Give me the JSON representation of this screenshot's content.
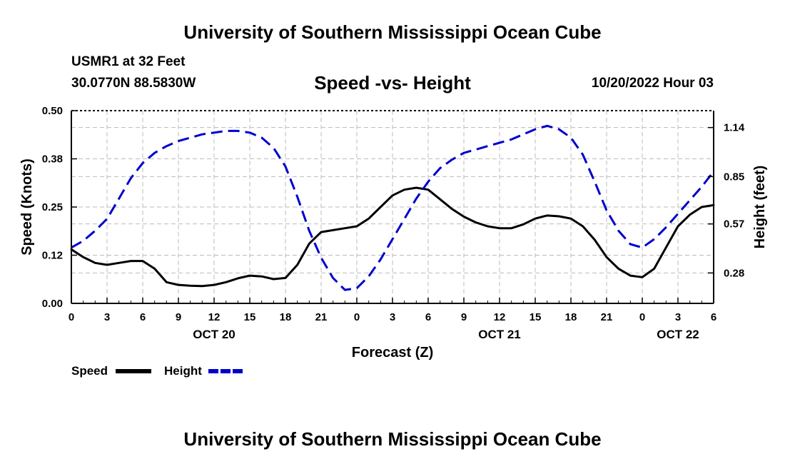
{
  "header": {
    "title": "University of Southern Mississippi Ocean Cube",
    "station": "USMR1 at 32 Feet",
    "coords": "30.0770N  88.5830W",
    "subtitle": "Speed -vs- Height",
    "datetime": "10/20/2022 Hour 03"
  },
  "footer": {
    "title": "University of Southern Mississippi Ocean Cube"
  },
  "chart_data": {
    "type": "line",
    "title": "Speed -vs- Height",
    "xlabel": "Forecast (Z)",
    "ylabel": "Speed (Knots)",
    "y2label": "Height (feet)",
    "xlim": [
      0,
      54
    ],
    "ylim": [
      0,
      0.5
    ],
    "y2lim": [
      0.1,
      1.24
    ],
    "x_ticks": [
      0,
      3,
      6,
      9,
      12,
      15,
      18,
      21,
      24,
      27,
      30,
      33,
      36,
      39,
      42,
      45,
      48,
      51,
      54
    ],
    "x_tick_labels": [
      "0",
      "3",
      "6",
      "9",
      "12",
      "15",
      "18",
      "21",
      "0",
      "3",
      "6",
      "9",
      "12",
      "15",
      "18",
      "21",
      "0",
      "3",
      "6"
    ],
    "day_labels": [
      {
        "x": 12,
        "label": "OCT 20"
      },
      {
        "x": 36,
        "label": "OCT 21"
      },
      {
        "x": 51,
        "label": "OCT 22"
      }
    ],
    "y_ticks": [
      0,
      0.125,
      0.25,
      0.375,
      0.5
    ],
    "y_tick_labels": [
      "0.00",
      "0.12",
      "0.25",
      "0.38",
      "0.50"
    ],
    "y2_ticks": [
      0.28,
      0.57,
      0.85,
      1.14
    ],
    "y2_tick_labels": [
      "0.28",
      "0.57",
      "0.85",
      "1.14"
    ],
    "legend": {
      "placement": "bottom-left",
      "entries": [
        "Speed",
        "Height"
      ]
    },
    "series": [
      {
        "name": "Speed",
        "axis": "left",
        "color": "#000000",
        "style": "solid",
        "x": [
          0,
          1,
          2,
          3,
          4,
          5,
          6,
          7,
          8,
          9,
          10,
          11,
          12,
          13,
          14,
          15,
          16,
          17,
          18,
          19,
          20,
          21,
          22,
          23,
          24,
          25,
          26,
          27,
          28,
          29,
          30,
          31,
          32,
          33,
          34,
          35,
          36,
          37,
          38,
          39,
          40,
          41,
          42,
          43,
          44,
          45,
          46,
          47,
          48,
          49,
          50,
          51,
          52,
          53,
          54
        ],
        "values": [
          0.14,
          0.12,
          0.105,
          0.1,
          0.105,
          0.11,
          0.11,
          0.09,
          0.055,
          0.048,
          0.046,
          0.045,
          0.048,
          0.055,
          0.065,
          0.072,
          0.07,
          0.063,
          0.066,
          0.1,
          0.155,
          0.185,
          0.19,
          0.195,
          0.2,
          0.22,
          0.25,
          0.28,
          0.295,
          0.3,
          0.295,
          0.27,
          0.245,
          0.225,
          0.21,
          0.2,
          0.195,
          0.195,
          0.205,
          0.22,
          0.228,
          0.226,
          0.22,
          0.2,
          0.165,
          0.12,
          0.09,
          0.072,
          0.068,
          0.09,
          0.145,
          0.2,
          0.23,
          0.25,
          0.255
        ]
      },
      {
        "name": "Height",
        "axis": "right",
        "color": "#0000cc",
        "style": "dashed",
        "x": [
          0,
          1,
          2,
          3,
          4,
          5,
          6,
          7,
          8,
          9,
          10,
          11,
          12,
          13,
          14,
          15,
          16,
          17,
          18,
          19,
          20,
          21,
          22,
          23,
          24,
          25,
          26,
          27,
          28,
          29,
          30,
          31,
          32,
          33,
          34,
          35,
          36,
          37,
          38,
          39,
          40,
          41,
          42,
          43,
          44,
          45,
          46,
          47,
          48,
          49,
          50,
          51,
          52,
          53,
          54
        ],
        "values": [
          0.43,
          0.47,
          0.53,
          0.6,
          0.72,
          0.84,
          0.93,
          0.99,
          1.03,
          1.06,
          1.08,
          1.1,
          1.11,
          1.12,
          1.12,
          1.11,
          1.08,
          1.02,
          0.91,
          0.73,
          0.53,
          0.37,
          0.25,
          0.18,
          0.19,
          0.26,
          0.36,
          0.48,
          0.6,
          0.72,
          0.82,
          0.9,
          0.95,
          0.99,
          1.01,
          1.03,
          1.05,
          1.07,
          1.1,
          1.13,
          1.15,
          1.13,
          1.08,
          0.98,
          0.82,
          0.65,
          0.53,
          0.45,
          0.43,
          0.48,
          0.55,
          0.63,
          0.71,
          0.79,
          0.88
        ]
      }
    ]
  }
}
